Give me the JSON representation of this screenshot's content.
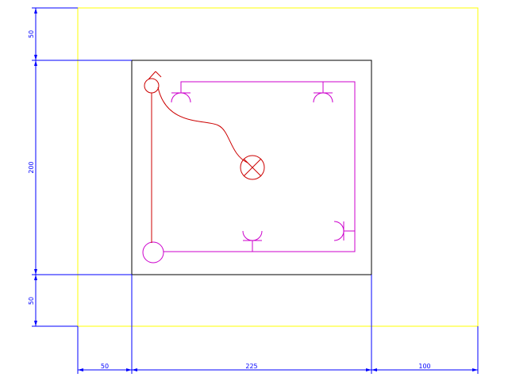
{
  "colors": {
    "background": "#ffffff",
    "boundary": "#ffff00",
    "room": "#000000",
    "dimension": "#0000ff",
    "electrical_circuit": "#cc00cc",
    "lighting": "#cc0000"
  },
  "dimensions": {
    "top_margin": "50",
    "room_depth": "200",
    "bottom_margin": "50",
    "left_margin": "50",
    "room_width": "225",
    "right_margin": "100"
  },
  "symbols": {
    "sockets": [
      "socket-top-left",
      "socket-top-right",
      "socket-bottom",
      "socket-right"
    ],
    "lamp": "ceiling-lamp",
    "switches": [
      "switch-top",
      "switch-bottom"
    ]
  }
}
